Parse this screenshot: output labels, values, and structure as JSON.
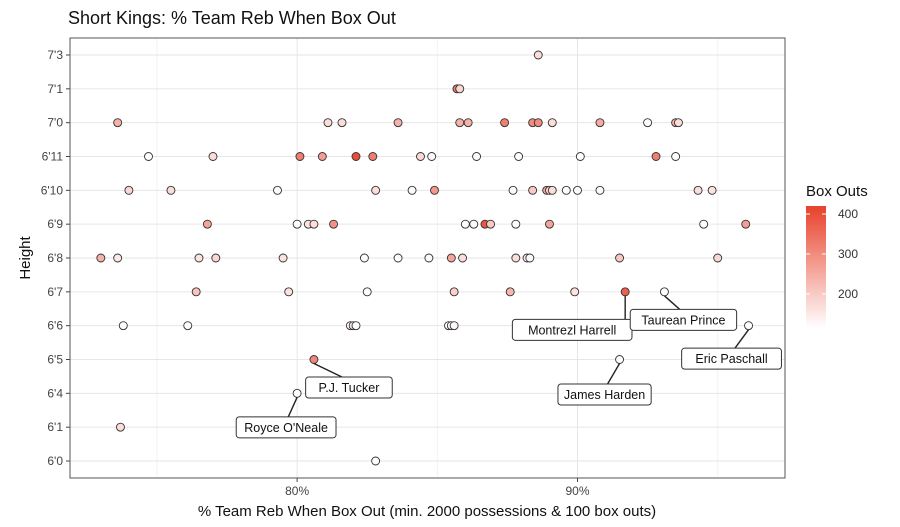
{
  "chart_data": {
    "type": "scatter",
    "title": "Short Kings: % Team Reb When Box Out",
    "xlabel": "% Team Reb When Box Out (min. 2000 possessions & 100 box outs)",
    "ylabel": "Height",
    "xlim": [
      71.9,
      97.4
    ],
    "x_ticks": [
      80,
      90
    ],
    "x_tick_labels": [
      "80%",
      "90%"
    ],
    "y_categories": [
      "6'0",
      "6'1",
      "6'4",
      "6'5",
      "6'6",
      "6'7",
      "6'8",
      "6'9",
      "6'10",
      "6'11",
      "7'0",
      "7'1",
      "7'3"
    ],
    "grid": true,
    "legend": {
      "title": "Box Outs",
      "placement": "right",
      "range": [
        115,
        420
      ],
      "ticks": [
        200,
        300,
        400
      ],
      "tick_labels": [
        "200",
        "300",
        "400"
      ],
      "low_color": "#ffffff",
      "high_color": "#e8412c"
    },
    "point_fields": [
      "pct_team_reb",
      "height",
      "box_outs"
    ],
    "points": [
      [
        88.6,
        "7'3",
        170
      ],
      [
        85.7,
        "7'1",
        330
      ],
      [
        85.8,
        "7'1",
        180
      ],
      [
        73.6,
        "7'0",
        240
      ],
      [
        81.1,
        "7'0",
        170
      ],
      [
        81.6,
        "7'0",
        170
      ],
      [
        83.6,
        "7'0",
        240
      ],
      [
        85.8,
        "7'0",
        240
      ],
      [
        86.1,
        "7'0",
        240
      ],
      [
        87.4,
        "7'0",
        320
      ],
      [
        88.4,
        "7'0",
        300
      ],
      [
        88.6,
        "7'0",
        300
      ],
      [
        89.1,
        "7'0",
        170
      ],
      [
        90.8,
        "7'0",
        250
      ],
      [
        92.5,
        "7'0",
        120
      ],
      [
        93.5,
        "7'0",
        240
      ],
      [
        93.6,
        "7'0",
        170
      ],
      [
        74.7,
        "6'11",
        120
      ],
      [
        77.0,
        "6'11",
        170
      ],
      [
        80.1,
        "6'11",
        320
      ],
      [
        80.9,
        "6'11",
        270
      ],
      [
        82.1,
        "6'11",
        400
      ],
      [
        82.7,
        "6'11",
        320
      ],
      [
        84.4,
        "6'11",
        180
      ],
      [
        84.8,
        "6'11",
        125
      ],
      [
        86.4,
        "6'11",
        125
      ],
      [
        87.9,
        "6'11",
        120
      ],
      [
        90.1,
        "6'11",
        120
      ],
      [
        92.8,
        "6'11",
        320
      ],
      [
        93.5,
        "6'11",
        120
      ],
      [
        74.0,
        "6'10",
        180
      ],
      [
        75.5,
        "6'10",
        170
      ],
      [
        79.3,
        "6'10",
        125
      ],
      [
        82.8,
        "6'10",
        170
      ],
      [
        84.1,
        "6'10",
        125
      ],
      [
        84.9,
        "6'10",
        280
      ],
      [
        87.7,
        "6'10",
        125
      ],
      [
        88.4,
        "6'10",
        200
      ],
      [
        88.9,
        "6'10",
        260
      ],
      [
        89.0,
        "6'10",
        180
      ],
      [
        89.1,
        "6'10",
        170
      ],
      [
        89.6,
        "6'10",
        120
      ],
      [
        90.0,
        "6'10",
        125
      ],
      [
        90.8,
        "6'10",
        125
      ],
      [
        94.3,
        "6'10",
        170
      ],
      [
        94.8,
        "6'10",
        160
      ],
      [
        76.8,
        "6'9",
        260
      ],
      [
        80.0,
        "6'9",
        120
      ],
      [
        80.4,
        "6'9",
        160
      ],
      [
        80.6,
        "6'9",
        170
      ],
      [
        81.3,
        "6'9",
        290
      ],
      [
        86.0,
        "6'9",
        120
      ],
      [
        86.3,
        "6'9",
        125
      ],
      [
        86.7,
        "6'9",
        390
      ],
      [
        86.9,
        "6'9",
        200
      ],
      [
        87.8,
        "6'9",
        120
      ],
      [
        89.0,
        "6'9",
        260
      ],
      [
        94.5,
        "6'9",
        120
      ],
      [
        96.0,
        "6'9",
        270
      ],
      [
        73.0,
        "6'8",
        240
      ],
      [
        73.6,
        "6'8",
        150
      ],
      [
        76.5,
        "6'8",
        160
      ],
      [
        77.1,
        "6'8",
        180
      ],
      [
        79.5,
        "6'8",
        160
      ],
      [
        82.4,
        "6'8",
        120
      ],
      [
        83.6,
        "6'8",
        120
      ],
      [
        84.7,
        "6'8",
        125
      ],
      [
        85.5,
        "6'8",
        260
      ],
      [
        85.9,
        "6'8",
        170
      ],
      [
        87.8,
        "6'8",
        170
      ],
      [
        88.2,
        "6'8",
        150
      ],
      [
        88.3,
        "6'8",
        125
      ],
      [
        91.5,
        "6'8",
        200
      ],
      [
        95.0,
        "6'8",
        180
      ],
      [
        76.4,
        "6'7",
        210
      ],
      [
        79.7,
        "6'7",
        160
      ],
      [
        82.5,
        "6'7",
        120
      ],
      [
        85.6,
        "6'7",
        190
      ],
      [
        87.6,
        "6'7",
        230
      ],
      [
        89.9,
        "6'7",
        160
      ],
      [
        91.7,
        "6'7",
        370
      ],
      [
        93.1,
        "6'7",
        120
      ],
      [
        73.8,
        "6'6",
        120
      ],
      [
        76.1,
        "6'6",
        120
      ],
      [
        81.9,
        "6'6",
        125
      ],
      [
        82.0,
        "6'6",
        150
      ],
      [
        82.1,
        "6'6",
        120
      ],
      [
        85.4,
        "6'6",
        120
      ],
      [
        85.5,
        "6'6",
        120
      ],
      [
        85.6,
        "6'6",
        125
      ],
      [
        87.9,
        "6'6",
        180
      ],
      [
        96.1,
        "6'6",
        120
      ],
      [
        80.6,
        "6'5",
        310
      ],
      [
        91.5,
        "6'5",
        120
      ],
      [
        80.0,
        "6'4",
        120
      ],
      [
        73.7,
        "6'1",
        170
      ],
      [
        82.8,
        "6'0",
        120
      ]
    ],
    "annotations": [
      {
        "label": "Royce O'Neale",
        "x": 80.0,
        "height": "6'4"
      },
      {
        "label": "P.J. Tucker",
        "x": 80.6,
        "height": "6'5"
      },
      {
        "label": "James Harden",
        "x": 91.5,
        "height": "6'5"
      },
      {
        "label": "Montrezl Harrell",
        "x": 91.7,
        "height": "6'7"
      },
      {
        "label": "Taurean Prince",
        "x": 93.1,
        "height": "6'7"
      },
      {
        "label": "Eric Paschall",
        "x": 96.1,
        "height": "6'6"
      }
    ]
  }
}
